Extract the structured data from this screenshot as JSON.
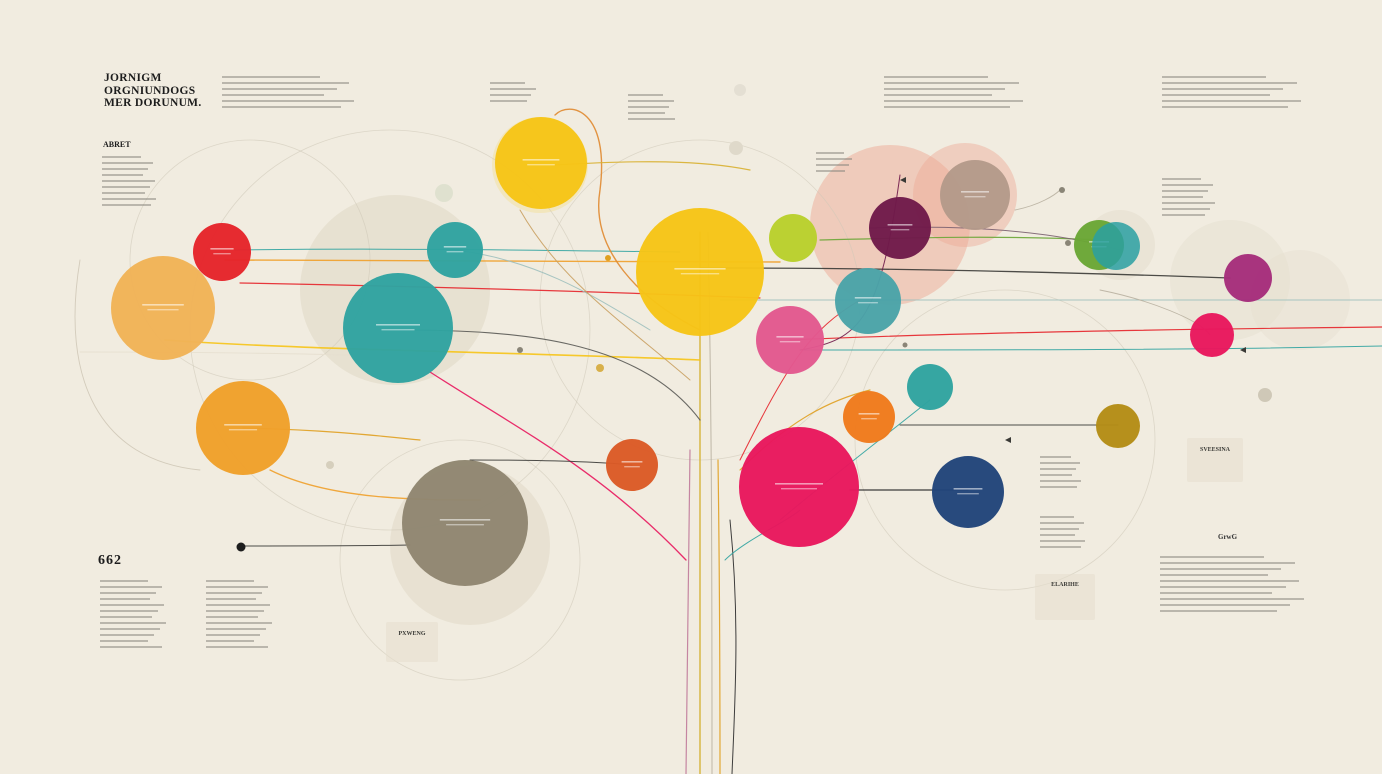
{
  "title": {
    "lines": [
      "JORNIGM",
      "ORGNIUNDOGS",
      "MER DORUNUM."
    ]
  },
  "abstract": {
    "heading": "ABRET"
  },
  "quote": {
    "heading": " 662"
  },
  "right_label": "GrwG",
  "cards": {
    "c1": "ELARIHE",
    "c2": "PXWENG",
    "c3": "SVEESINA"
  },
  "colors": {
    "background": "#f1ece0",
    "yellow": "#f6c417",
    "red": "#e5242a",
    "teal": "#2fa3a0",
    "orange_light": "#f1b357",
    "orange": "#f0a02a",
    "taupe": "#8f8671",
    "crimson": "#e8175d",
    "pink": "#e2588e",
    "plum": "#6f1a4a",
    "navy": "#21447a",
    "olive_gold": "#b48c16",
    "lime": "#b9cf2c",
    "green": "#6aa636",
    "magenta": "#a52d7b",
    "salmon": "#eeaa96",
    "deep_orange": "#db5a26"
  }
}
